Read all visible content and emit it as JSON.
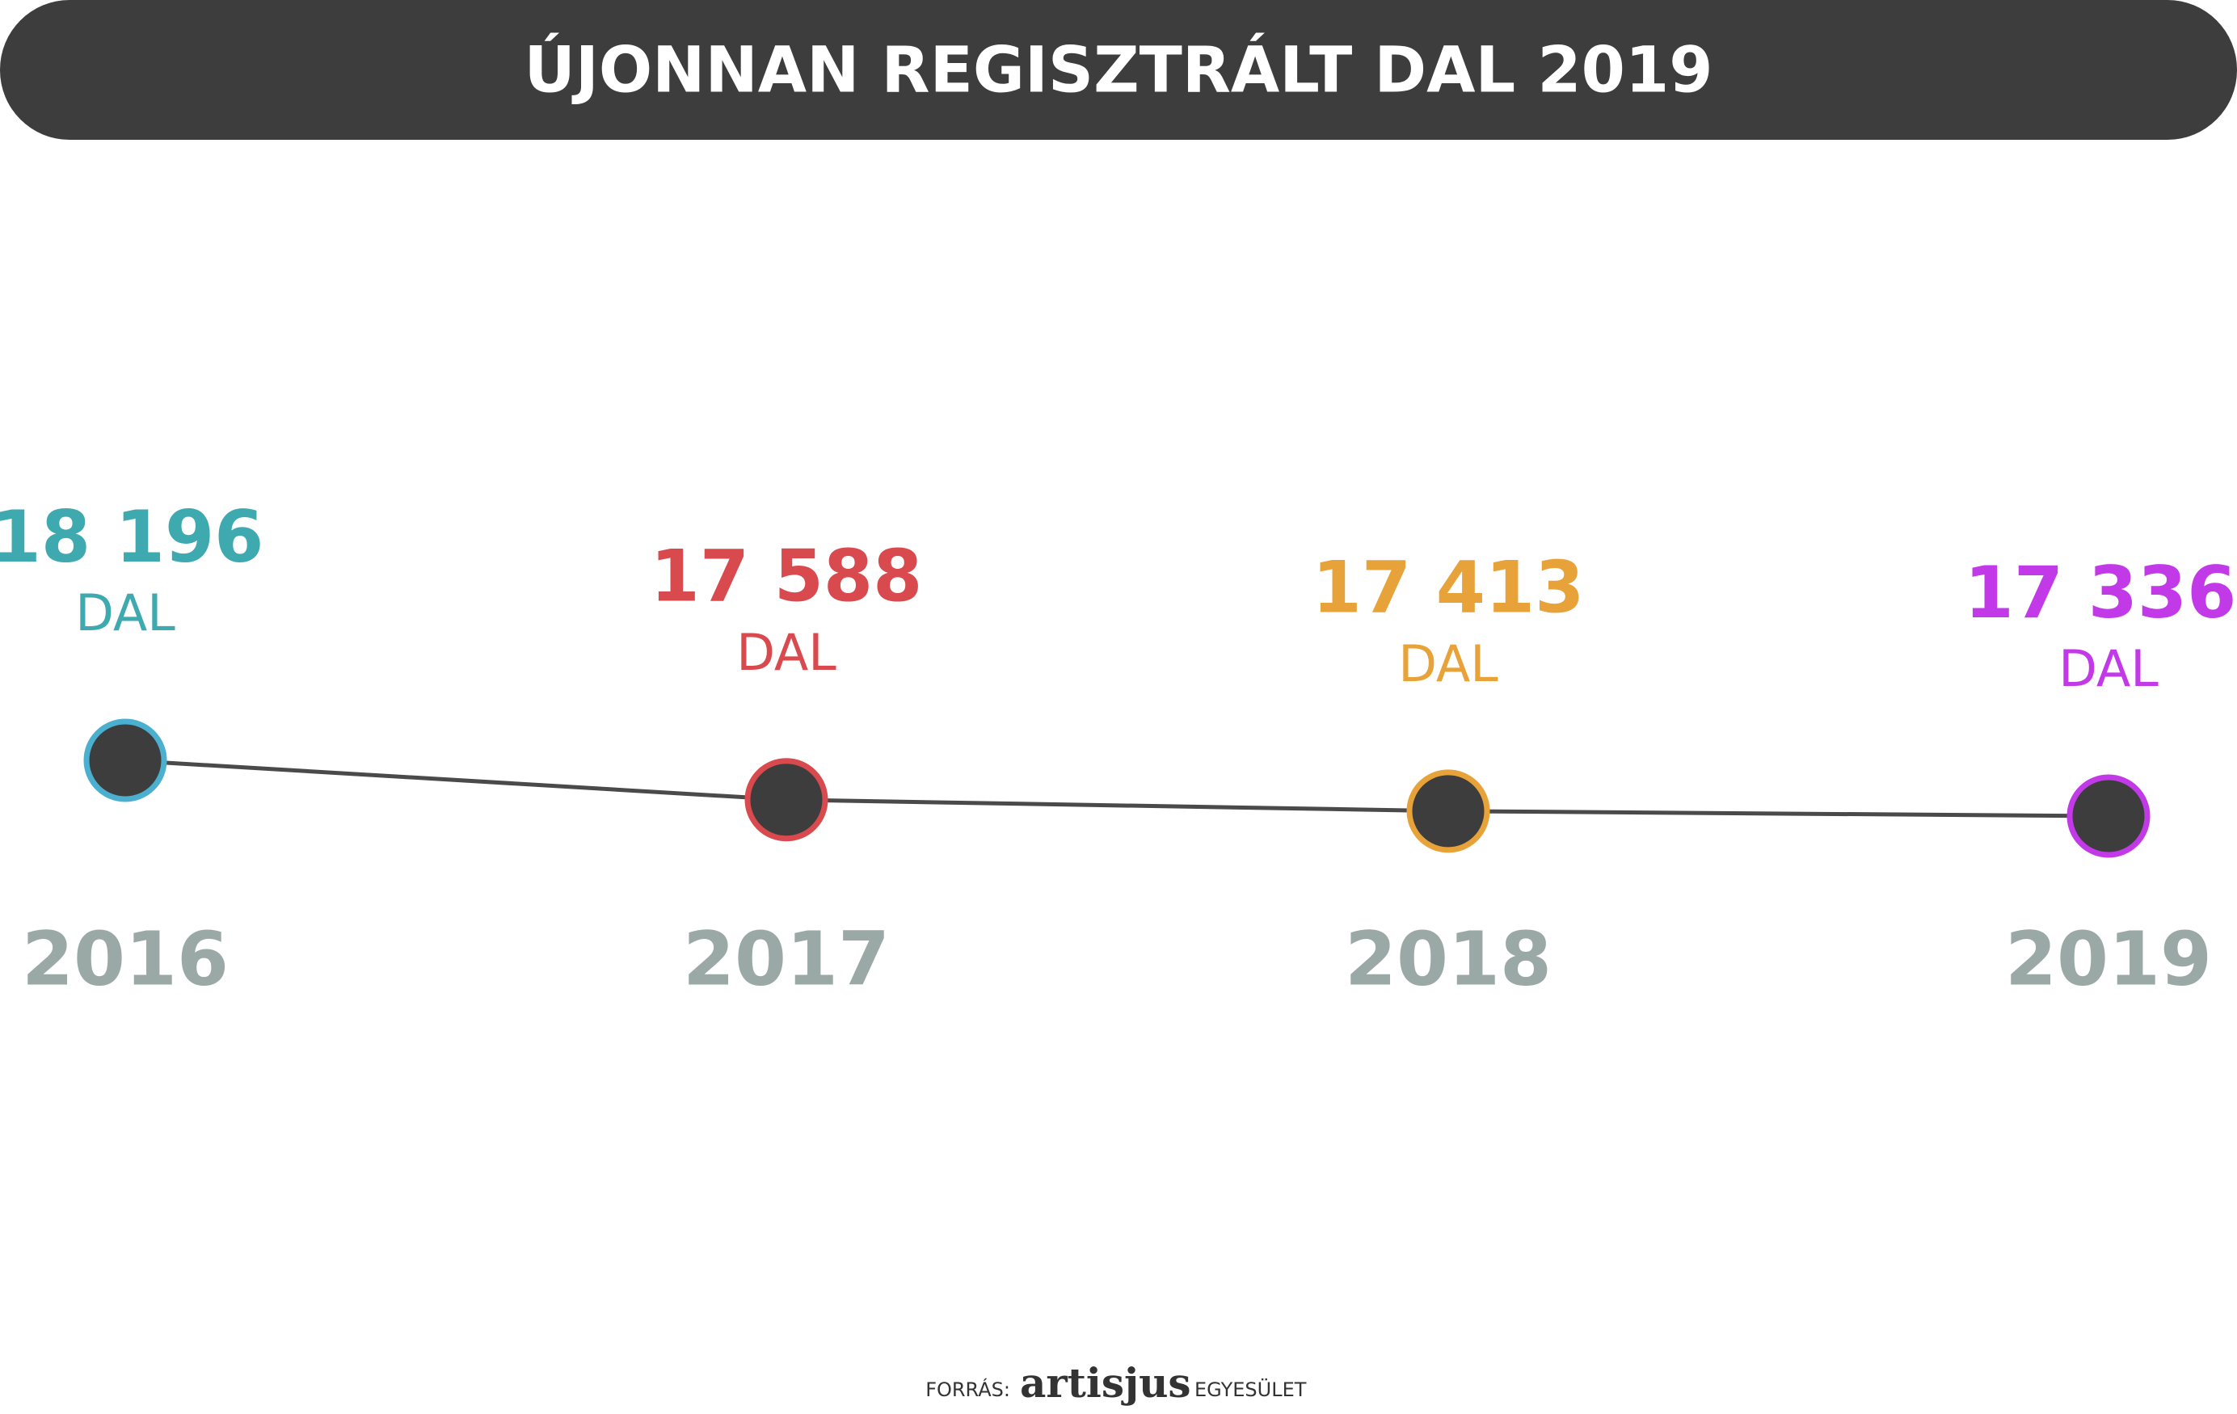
{
  "chart_data": {
    "type": "line",
    "title": "ÚJONNAN REGISZTRÁLT DAL 2019",
    "categories": [
      "2016",
      "2017",
      "2018",
      "2019"
    ],
    "values": [
      18196,
      17588,
      17413,
      17336
    ],
    "value_labels": [
      "18 196",
      "17 588",
      "17 413",
      "17 336"
    ],
    "unit_label": "DAL",
    "point_colors": [
      "#3fa9b0",
      "#d94a4f",
      "#e8a23a",
      "#c23ae8"
    ],
    "ring_colors": [
      "#4bb0d0",
      "#d94a4f",
      "#e8a23a",
      "#c23ae8"
    ],
    "color": "#4a4a4a",
    "source": {
      "prefix": "FORRÁS:",
      "brand": "artisjus",
      "suffix": "EGYESÜLET"
    }
  }
}
